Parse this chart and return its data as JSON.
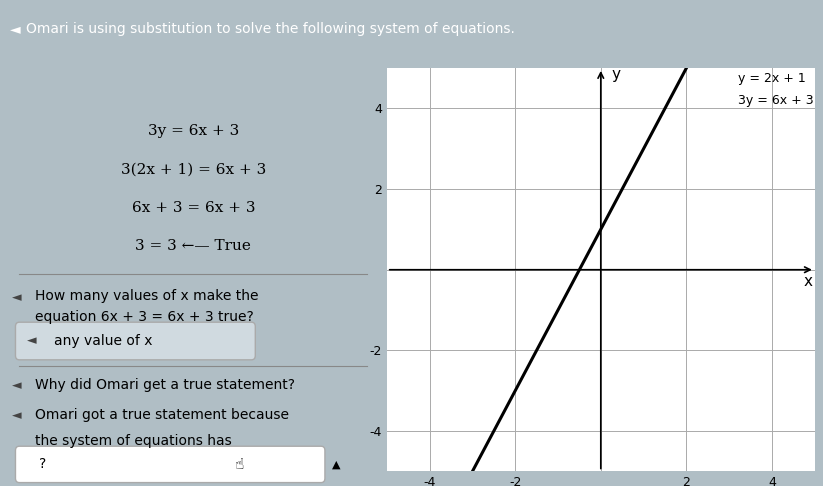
{
  "title": "Omari is using substitution to solve the following system of equations.",
  "title_bg": "#4a6fa5",
  "main_bg": "#b0bec5",
  "left_bg": "#cfd8dc",
  "graph_bg": "#ffffff",
  "equations_steps": [
    "3y = 6x + 3",
    "3(2x + 1) = 6x + 3",
    "6x + 3 = 6x + 3",
    "3 = 3 ←— True"
  ],
  "question1_line1": "How many values of x make the",
  "question1_line2": "equation 6x + 3 = 6x + 3 true?",
  "answer1": "any value of x",
  "question2": "Why did Omari get a true statement?",
  "answer2_line1": "Omari got a true statement because",
  "answer2_line2": "the system of equations has",
  "answer2_box": "?",
  "line1_label": "y = 2x + 1",
  "line2_label": "3y = 6x + 3",
  "xmin": -5,
  "xmax": 5,
  "ymin": -5,
  "ymax": 5,
  "xticks": [
    -4,
    -2,
    0,
    2,
    4
  ],
  "yticks": [
    -4,
    -2,
    0,
    2,
    4
  ],
  "line_color": "#000000",
  "grid_color": "#aaaaaa",
  "axis_color": "#000000"
}
